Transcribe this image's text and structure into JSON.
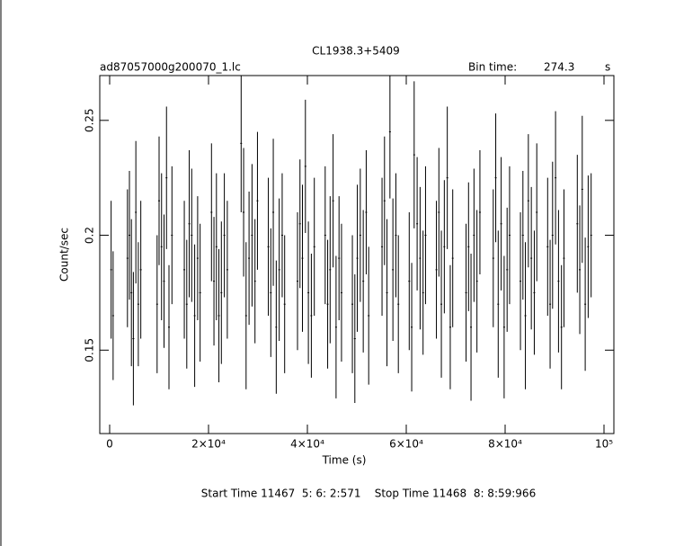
{
  "chart_data": {
    "type": "errorbar",
    "title": "CL1938.3+5409",
    "subtitle": "ad87057000g200070_1.lc",
    "bin_time_label": "Bin time:",
    "bin_time": "274.3",
    "bin_time_unit": "s",
    "x_label": "Time (s)",
    "y_label": "Count/sec",
    "footer": "Start Time 11467  5: 6: 2:571    Stop Time 11468  8: 8:59:966",
    "xlim": [
      -2000,
      102000
    ],
    "ylim": [
      0.1137,
      0.2695
    ],
    "xticks": [
      0,
      {
        "value": 20000,
        "label": "2×10⁴"
      },
      {
        "value": 40000,
        "label": "4×10⁴"
      },
      {
        "value": 60000,
        "label": "6×10⁴"
      },
      {
        "value": 80000,
        "label": "8×10⁴"
      },
      {
        "value": 100000,
        "label": "10⁵"
      }
    ],
    "yticks": [
      0.15,
      0.2,
      0.25
    ],
    "color": "#000000",
    "x": [
      300,
      700,
      3600,
      4000,
      4400,
      4800,
      5300,
      5800,
      6300,
      9600,
      10000,
      10500,
      11000,
      11500,
      12000,
      12600,
      15100,
      15600,
      16100,
      16600,
      17200,
      17800,
      18300,
      20600,
      21100,
      21600,
      22100,
      22600,
      23200,
      23800,
      26600,
      27100,
      27600,
      28200,
      28800,
      29400,
      29900,
      32100,
      32600,
      33100,
      33700,
      34300,
      34900,
      35400,
      38000,
      38500,
      39000,
      39600,
      40200,
      40800,
      41400,
      43600,
      44100,
      44600,
      45200,
      45800,
      46400,
      46900,
      49100,
      49600,
      50100,
      50700,
      51300,
      51900,
      52400,
      55100,
      55600,
      56100,
      56700,
      57300,
      57900,
      58400,
      60600,
      61100,
      61600,
      62200,
      62800,
      63400,
      63900,
      66100,
      66600,
      67100,
      67700,
      68300,
      68900,
      69400,
      72100,
      72600,
      73100,
      73700,
      74300,
      74900,
      77600,
      78100,
      78600,
      79200,
      79800,
      80400,
      80900,
      83100,
      83600,
      84100,
      84700,
      85300,
      85900,
      86400,
      88600,
      89100,
      89600,
      90200,
      90800,
      91400,
      91900,
      94600,
      95100,
      95600,
      96200,
      96800,
      97400
    ],
    "values": [
      0.185,
      0.165,
      0.19,
      0.2,
      0.175,
      0.155,
      0.21,
      0.17,
      0.185,
      0.17,
      0.215,
      0.195,
      0.18,
      0.225,
      0.16,
      0.2,
      0.185,
      0.17,
      0.205,
      0.2,
      0.165,
      0.19,
      0.175,
      0.21,
      0.18,
      0.195,
      0.165,
      0.175,
      0.2,
      0.185,
      0.24,
      0.21,
      0.165,
      0.19,
      0.2,
      0.18,
      0.215,
      0.195,
      0.175,
      0.21,
      0.16,
      0.185,
      0.2,
      0.17,
      0.18,
      0.205,
      0.19,
      0.23,
      0.175,
      0.165,
      0.195,
      0.2,
      0.17,
      0.185,
      0.215,
      0.16,
      0.19,
      0.175,
      0.17,
      0.155,
      0.19,
      0.2,
      0.18,
      0.21,
      0.165,
      0.195,
      0.215,
      0.175,
      0.245,
      0.185,
      0.2,
      0.17,
      0.18,
      0.16,
      0.235,
      0.205,
      0.19,
      0.175,
      0.2,
      0.185,
      0.21,
      0.17,
      0.195,
      0.225,
      0.16,
      0.19,
      0.175,
      0.195,
      0.16,
      0.2,
      0.18,
      0.21,
      0.19,
      0.225,
      0.17,
      0.205,
      0.16,
      0.185,
      0.2,
      0.18,
      0.2,
      0.165,
      0.215,
      0.19,
      0.175,
      0.21,
      0.195,
      0.17,
      0.2,
      0.225,
      0.18,
      0.16,
      0.19,
      0.205,
      0.185,
      0.22,
      0.17,
      0.195,
      0.2
    ],
    "errors": [
      0.03,
      0.028,
      0.03,
      0.028,
      0.032,
      0.029,
      0.031,
      0.027,
      0.03,
      0.03,
      0.028,
      0.032,
      0.029,
      0.031,
      0.027,
      0.03,
      0.03,
      0.028,
      0.032,
      0.029,
      0.031,
      0.027,
      0.03,
      0.03,
      0.028,
      0.032,
      0.029,
      0.031,
      0.027,
      0.03,
      0.03,
      0.028,
      0.032,
      0.029,
      0.031,
      0.027,
      0.03,
      0.03,
      0.028,
      0.032,
      0.029,
      0.031,
      0.027,
      0.03,
      0.03,
      0.028,
      0.032,
      0.029,
      0.031,
      0.027,
      0.03,
      0.03,
      0.028,
      0.032,
      0.029,
      0.031,
      0.027,
      0.03,
      0.03,
      0.028,
      0.032,
      0.029,
      0.031,
      0.027,
      0.03,
      0.03,
      0.028,
      0.032,
      0.029,
      0.031,
      0.027,
      0.03,
      0.03,
      0.028,
      0.032,
      0.029,
      0.031,
      0.027,
      0.03,
      0.03,
      0.028,
      0.032,
      0.029,
      0.031,
      0.027,
      0.03,
      0.03,
      0.028,
      0.032,
      0.029,
      0.031,
      0.027,
      0.03,
      0.028,
      0.032,
      0.029,
      0.031,
      0.027,
      0.03,
      0.03,
      0.028,
      0.032,
      0.029,
      0.031,
      0.027,
      0.03,
      0.03,
      0.028,
      0.032,
      0.029,
      0.031,
      0.027,
      0.03,
      0.03,
      0.028,
      0.032,
      0.029,
      0.031,
      0.027
    ]
  }
}
